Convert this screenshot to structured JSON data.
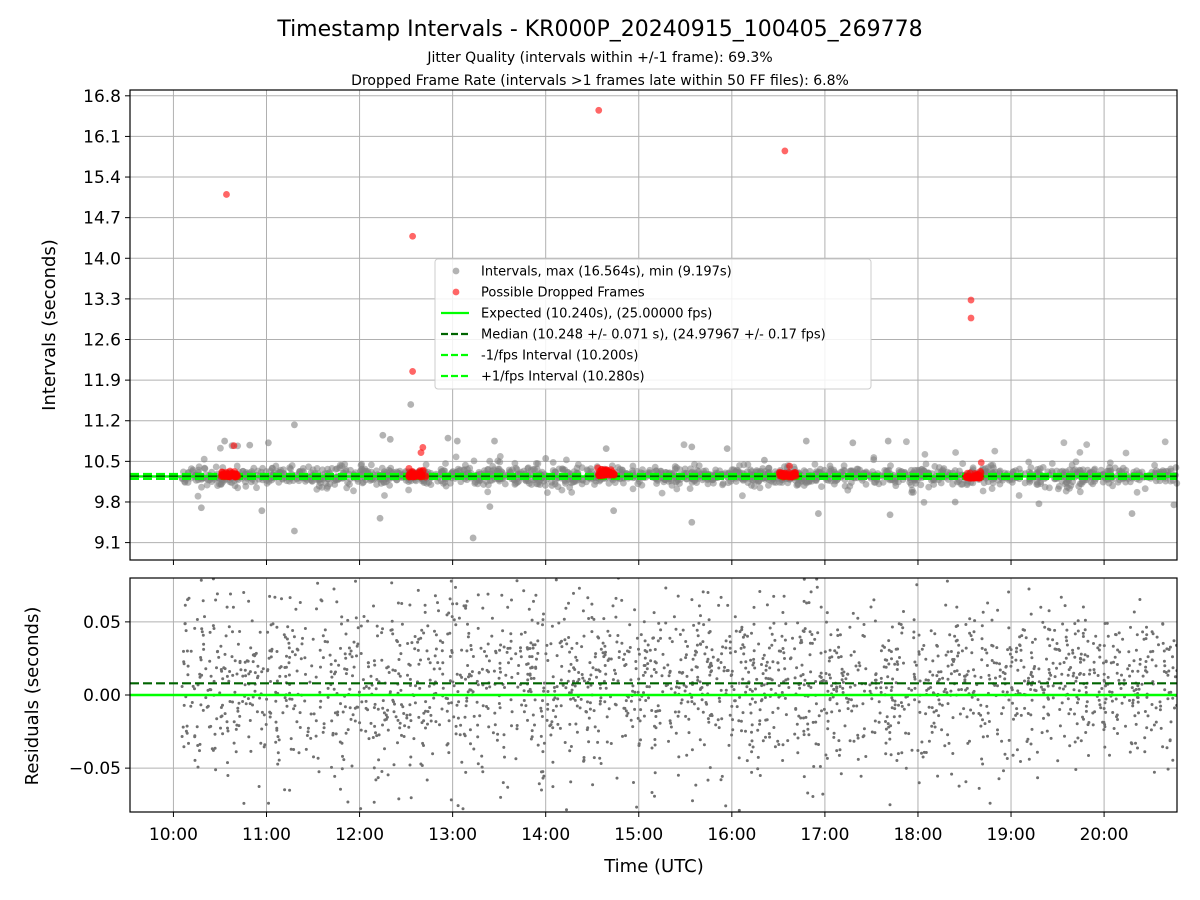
{
  "chart_data": [
    {
      "type": "scatter",
      "panel": "intervals",
      "title": "Timestamp Intervals - KR000P_20240915_100405_269778",
      "subtitle_lines": [
        "Jitter Quality (intervals within +/-1 frame): 69.3%",
        "Dropped Frame Rate (intervals >1 frames late within 50 FF files): 6.8%"
      ],
      "ylabel": "Intervals (seconds)",
      "ylim": [
        8.8,
        16.9
      ],
      "yticks": [
        "9.1",
        "9.8",
        "10.5",
        "11.2",
        "11.9",
        "12.6",
        "13.3",
        "14.0",
        "14.7",
        "15.4",
        "16.1",
        "16.8"
      ],
      "grid": true,
      "legend_position": "center",
      "series": [
        {
          "name": "Intervals, max (16.564s), min (9.197s)",
          "kind": "scatter",
          "color": "#808080",
          "points": [
            [
              10.55,
              10.85
            ],
            [
              10.63,
              10.77
            ],
            [
              10.82,
              10.78
            ],
            [
              11.02,
              10.82
            ],
            [
              11.3,
              11.13
            ],
            [
              12.25,
              10.95
            ],
            [
              12.33,
              10.88
            ],
            [
              12.55,
              11.48
            ],
            [
              12.95,
              10.9
            ],
            [
              13.05,
              10.85
            ],
            [
              13.45,
              10.85
            ],
            [
              14.0,
              10.55
            ],
            [
              14.65,
              10.72
            ],
            [
              15.57,
              10.75
            ],
            [
              15.95,
              10.72
            ],
            [
              16.35,
              10.52
            ],
            [
              16.8,
              10.85
            ],
            [
              17.3,
              10.82
            ],
            [
              17.68,
              10.85
            ],
            [
              10.3,
              9.7
            ],
            [
              10.95,
              9.65
            ],
            [
              11.3,
              9.3
            ],
            [
              12.22,
              9.52
            ],
            [
              13.22,
              9.18
            ],
            [
              13.4,
              9.72
            ],
            [
              14.73,
              9.65
            ],
            [
              15.57,
              9.45
            ],
            [
              16.93,
              9.6
            ],
            [
              17.7,
              9.58
            ],
            [
              18.4,
              9.8
            ],
            [
              19.3,
              9.77
            ],
            [
              20.3,
              9.6
            ],
            [
              20.75,
              9.75
            ]
          ]
        },
        {
          "name": "Possible Dropped Frames",
          "kind": "scatter",
          "color": "#ff0000",
          "points": [
            [
              10.57,
              15.1
            ],
            [
              12.57,
              14.38
            ],
            [
              12.57,
              12.05
            ],
            [
              14.57,
              16.55
            ],
            [
              16.57,
              15.85
            ],
            [
              18.57,
              13.28
            ],
            [
              18.57,
              12.97
            ],
            [
              10.65,
              10.77
            ],
            [
              12.68,
              10.74
            ],
            [
              12.66,
              10.65
            ],
            [
              18.68,
              10.48
            ],
            [
              16.62,
              10.42
            ]
          ],
          "clusters": [
            [
              10.6,
              10.25
            ],
            [
              12.62,
              10.25
            ],
            [
              14.65,
              10.27
            ],
            [
              16.6,
              10.25
            ],
            [
              18.6,
              10.23
            ]
          ]
        },
        {
          "name": "Expected (10.240s), (25.00000 fps)",
          "kind": "hline",
          "value": 10.24,
          "color": "#00ff00",
          "style": "solid"
        },
        {
          "name": "Median (10.248 +/- 0.071 s), (24.97967 +/- 0.17 fps)",
          "kind": "hline",
          "value": 10.248,
          "color": "#006400",
          "style": "dashed"
        },
        {
          "name": "-1/fps Interval (10.200s)",
          "kind": "hline",
          "value": 10.2,
          "color": "#00ff00",
          "style": "dashed"
        },
        {
          "name": "+1/fps Interval (10.280s)",
          "kind": "hline",
          "value": 10.28,
          "color": "#00ff00",
          "style": "dashed"
        }
      ]
    },
    {
      "type": "scatter",
      "panel": "residuals",
      "xlabel": "Time (UTC)",
      "ylabel": "Residuals (seconds)",
      "xlim": [
        "09:32",
        "20:47"
      ],
      "xticks": [
        "10:00",
        "11:00",
        "12:00",
        "13:00",
        "14:00",
        "15:00",
        "16:00",
        "17:00",
        "18:00",
        "19:00",
        "20:00"
      ],
      "ylim": [
        -0.08,
        0.08
      ],
      "yticks": [
        "0.05",
        "0.00",
        "−0.05"
      ],
      "grid": true,
      "series": [
        {
          "kind": "scatter",
          "color": "#808080",
          "spread": [
            -0.08,
            0.08
          ],
          "x_range": [
            "10:05",
            "20:47"
          ]
        },
        {
          "kind": "hline",
          "value": 0.0,
          "color": "#00ff00",
          "style": "solid"
        },
        {
          "kind": "hline",
          "value": 0.008,
          "color": "#006400",
          "style": "dashed"
        }
      ]
    }
  ]
}
